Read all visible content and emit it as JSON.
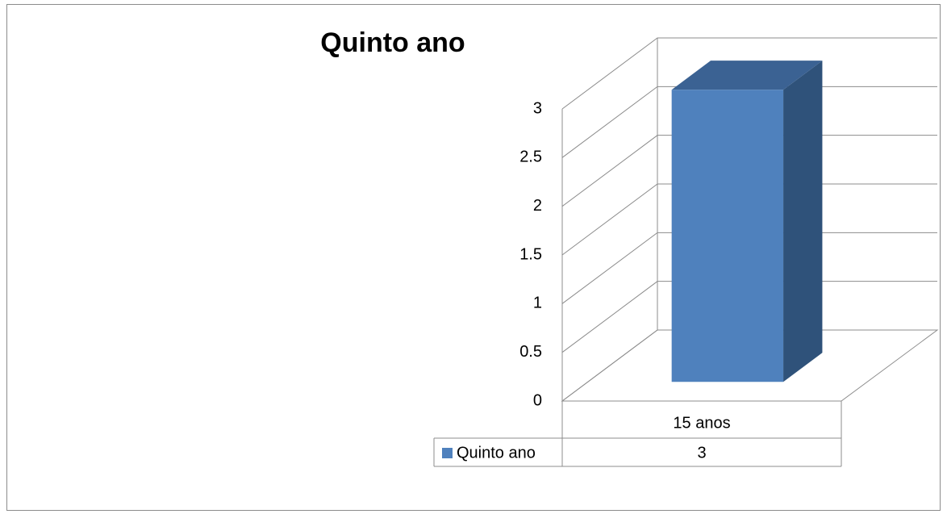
{
  "chart_data": {
    "type": "bar3d",
    "title": "Quinto ano",
    "categories": [
      "15 anos"
    ],
    "series": [
      {
        "name": "Quinto ano",
        "color": "#4f81bd",
        "values": [
          3
        ]
      }
    ],
    "ylim": [
      0,
      3
    ],
    "yticks": [
      0,
      0.5,
      1,
      1.5,
      2,
      2.5,
      3
    ],
    "grid": true
  }
}
